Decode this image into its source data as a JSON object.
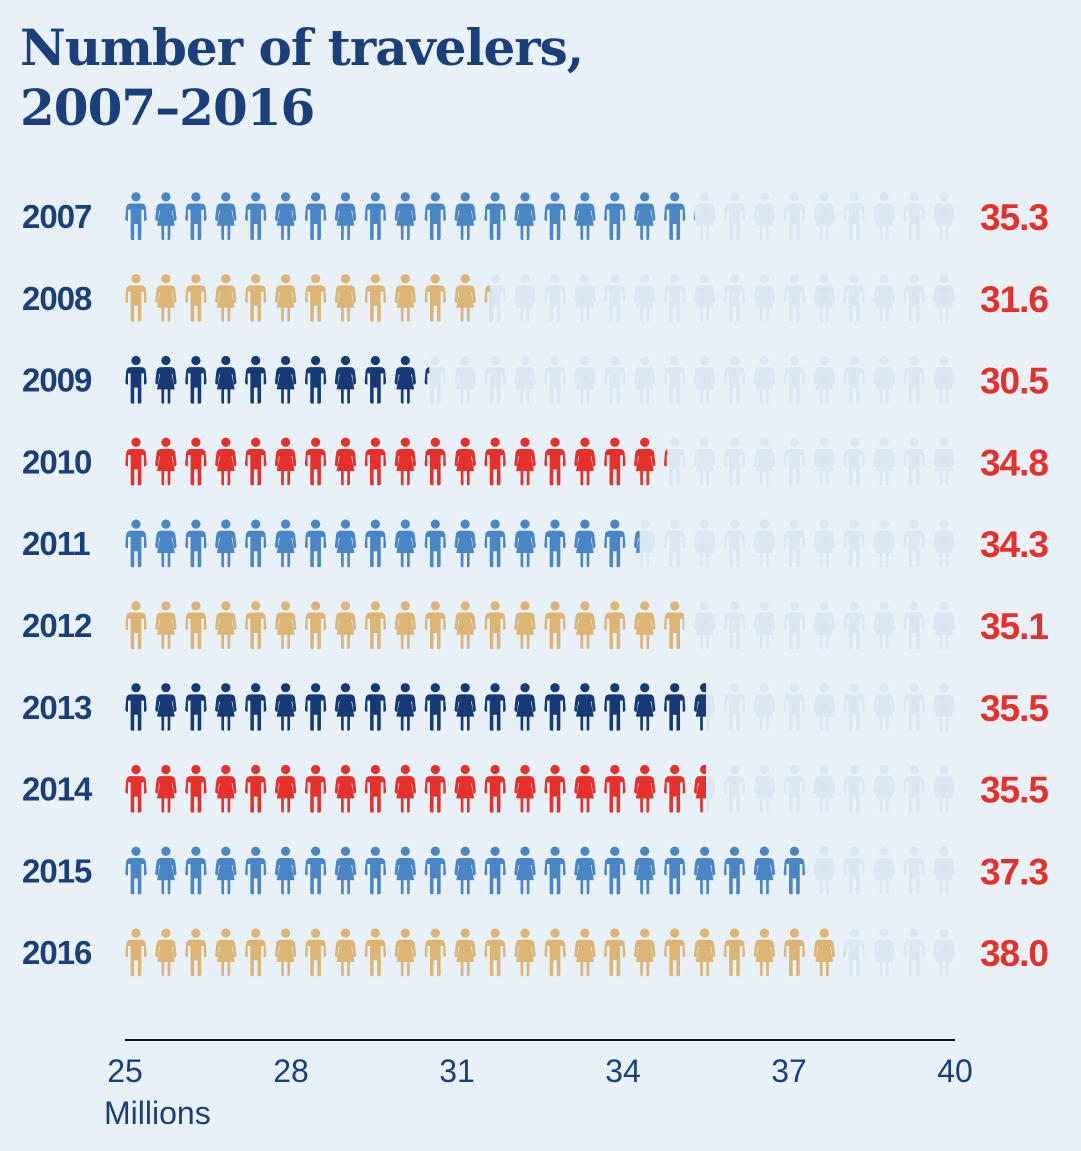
{
  "title": {
    "line1": "Number of travelers,",
    "line2": "2007–2016"
  },
  "chart_data": {
    "type": "bar",
    "title": "Number of travelers, 2007–2016",
    "xlabel": "Millions",
    "ylabel": "",
    "xlim": [
      25,
      40
    ],
    "xticks": [
      25,
      28,
      31,
      34,
      37,
      40
    ],
    "grid": false,
    "categories": [
      "2007",
      "2008",
      "2009",
      "2010",
      "2011",
      "2012",
      "2013",
      "2014",
      "2015",
      "2016"
    ],
    "values": [
      35.3,
      31.6,
      30.5,
      34.8,
      34.3,
      35.1,
      35.5,
      35.5,
      37.3,
      38.0
    ],
    "value_labels": [
      "35.3",
      "31.6",
      "30.5",
      "34.8",
      "34.3",
      "35.1",
      "35.5",
      "35.5",
      "37.3",
      "38.0"
    ],
    "bar_colors": [
      "#4a86c6",
      "#dcb574",
      "#163a75",
      "#e8302a",
      "#4a86c6",
      "#dcb574",
      "#163a75",
      "#e8302a",
      "#4a86c6",
      "#dcb574"
    ],
    "background_icon_color": "#d9e6f3",
    "icon": "person-icon"
  },
  "colors": {
    "background": "#e8f0f8",
    "title": "#1a3f7a",
    "value": "#e8302a",
    "axis": "#111111"
  }
}
